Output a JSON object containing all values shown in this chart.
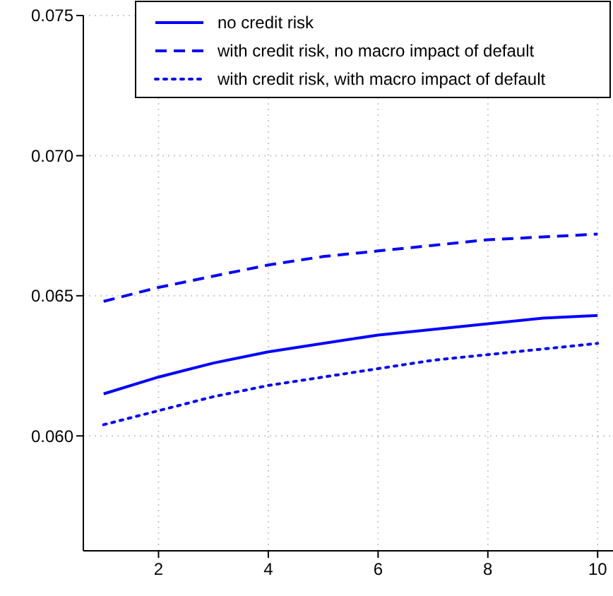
{
  "chart_data": {
    "type": "line",
    "x": [
      1,
      2,
      3,
      4,
      5,
      6,
      7,
      8,
      9,
      10
    ],
    "series": [
      {
        "name": "no credit risk",
        "color": "#0000ff",
        "line_style": "solid",
        "values": [
          0.0615,
          0.0621,
          0.0626,
          0.063,
          0.0633,
          0.0636,
          0.0638,
          0.064,
          0.0642,
          0.0643
        ]
      },
      {
        "name": "with credit risk, no macro impact of default",
        "color": "#0000ff",
        "line_style": "dashed",
        "values": [
          0.0648,
          0.0653,
          0.0657,
          0.0661,
          0.0664,
          0.0666,
          0.0668,
          0.067,
          0.0671,
          0.0672
        ]
      },
      {
        "name": "with credit risk, with macro impact of default",
        "color": "#0000ff",
        "line_style": "dotted",
        "values": [
          0.0604,
          0.0609,
          0.0614,
          0.0618,
          0.0621,
          0.0624,
          0.0627,
          0.0629,
          0.0631,
          0.0633
        ]
      }
    ],
    "xlim": [
      0.63,
      10.28
    ],
    "ylim": [
      0.0559,
      0.075
    ],
    "xticks": [
      2,
      4,
      6,
      8,
      10
    ],
    "yticks": [
      {
        "value": 0.06,
        "label": "0.060"
      },
      {
        "value": 0.065,
        "label": "0.065"
      },
      {
        "value": 0.07,
        "label": "0.070"
      },
      {
        "value": 0.075,
        "label": "0.075"
      }
    ],
    "grid": true,
    "legend": "top right",
    "marker": "none"
  }
}
